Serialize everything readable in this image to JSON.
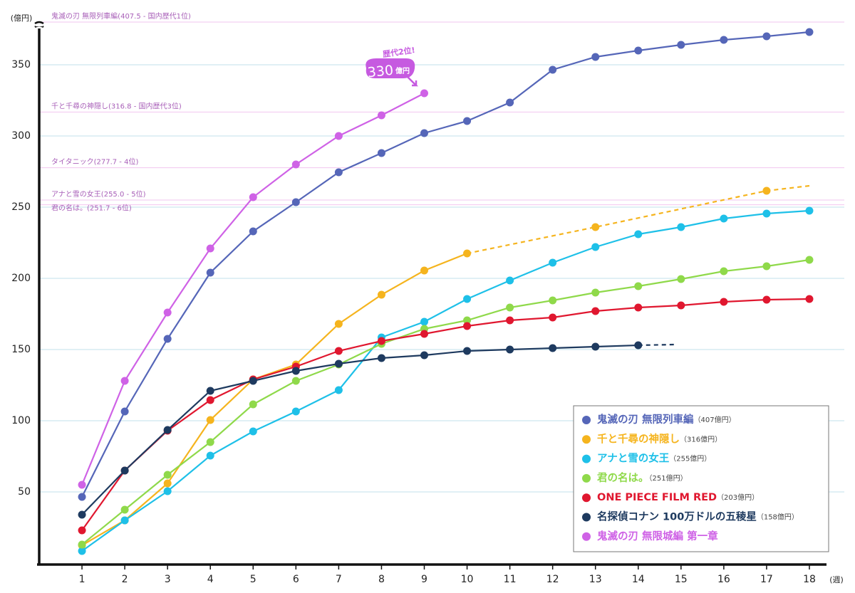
{
  "chart_data": {
    "type": "line",
    "y_unit_label": "(億円)",
    "x_unit_label": "(週)",
    "x": [
      1,
      2,
      3,
      4,
      5,
      6,
      7,
      8,
      9,
      10,
      11,
      12,
      13,
      14,
      15,
      16,
      17,
      18
    ],
    "xlim": [
      0,
      18.4
    ],
    "xticks": [
      1,
      2,
      3,
      4,
      5,
      6,
      7,
      8,
      9,
      10,
      11,
      12,
      13,
      14,
      15,
      16,
      17,
      18
    ],
    "ylim": [
      0,
      380
    ],
    "yticks": [
      50,
      100,
      150,
      200,
      250,
      300,
      350
    ],
    "grid": true,
    "legend": "lower right",
    "reference_lines": [
      {
        "label": "鬼滅の刃 無限列車編(407.5 - 国内歴代1位)",
        "value": 407.5
      },
      {
        "label": "千と千尋の神隠し(316.8 - 国内歴代3位)",
        "value": 316.8
      },
      {
        "label": "タイタニック(277.7 - 4位)",
        "value": 277.7
      },
      {
        "label": "アナと雪の女王(255.0 - 5位)",
        "value": 255.0
      },
      {
        "label": "君の名は。(251.7 - 6位)",
        "value": 251.7
      }
    ],
    "callout": {
      "top": "歴代2位!",
      "value": 330,
      "unit": "億円"
    },
    "series": [
      {
        "name": "鬼滅の刃 無限列車編",
        "legend_note": "（407億円）",
        "color": "#5566b8",
        "values": [
          46.5,
          106.5,
          157.5,
          204,
          233,
          253.5,
          274.5,
          288,
          302,
          310.5,
          323.5,
          346.5,
          355.5,
          360,
          364,
          367.5,
          370,
          373
        ]
      },
      {
        "name": "千と千尋の神隠し",
        "legend_note": "（316億円）",
        "color": "#f5b41e",
        "values": [
          12.5,
          30,
          56,
          100.5,
          129,
          139.5,
          168,
          188.5,
          205.5,
          217.5,
          null,
          null,
          null,
          null,
          null,
          null,
          null,
          null
        ],
        "projection": {
          "x": [
            13,
            17,
            18
          ],
          "values": [
            236,
            261.5,
            265
          ]
        }
      },
      {
        "name": "アナと雪の女王",
        "legend_note": "（255億円）",
        "color": "#1ec0e8",
        "values": [
          8.5,
          30,
          50.5,
          75.5,
          92.5,
          106.5,
          121.5,
          158.5,
          169.5,
          185.5,
          198.5,
          211,
          222,
          231,
          236,
          242,
          245.5,
          247.5
        ]
      },
      {
        "name": "君の名は。",
        "legend_note": "（251億円）",
        "color": "#8fd94a",
        "values": [
          13,
          37.5,
          62,
          85,
          111.5,
          128,
          139.5,
          154,
          164.5,
          170.5,
          179.5,
          184.5,
          190,
          194.5,
          199.5,
          205,
          208.5,
          213
        ]
      },
      {
        "name": "ONE PIECE FILM RED",
        "legend_note": "（203億円）",
        "color": "#e0172f",
        "values": [
          23,
          65,
          93,
          114.5,
          129,
          138,
          149,
          156,
          161,
          166.5,
          170.5,
          172.5,
          177,
          179.5,
          181,
          183.5,
          185,
          185.5
        ]
      },
      {
        "name": "名探偵コナン 100万ドルの五稜星",
        "legend_note": "（158億円）",
        "color": "#1e3a5f",
        "values": [
          34,
          65,
          93.5,
          121,
          128,
          135,
          140,
          144,
          146,
          149,
          150,
          151,
          152,
          153,
          null,
          null,
          null,
          null
        ],
        "projection": {
          "x": [
            14.85
          ],
          "values": [
            153.5
          ]
        }
      },
      {
        "name": "鬼滅の刃 無限城編 第一章",
        "color": "#cf62e6",
        "values": [
          55,
          128,
          176,
          221,
          257,
          280,
          300,
          314.5,
          330,
          null,
          null,
          null,
          null,
          null,
          null,
          null,
          null,
          null
        ]
      }
    ]
  }
}
